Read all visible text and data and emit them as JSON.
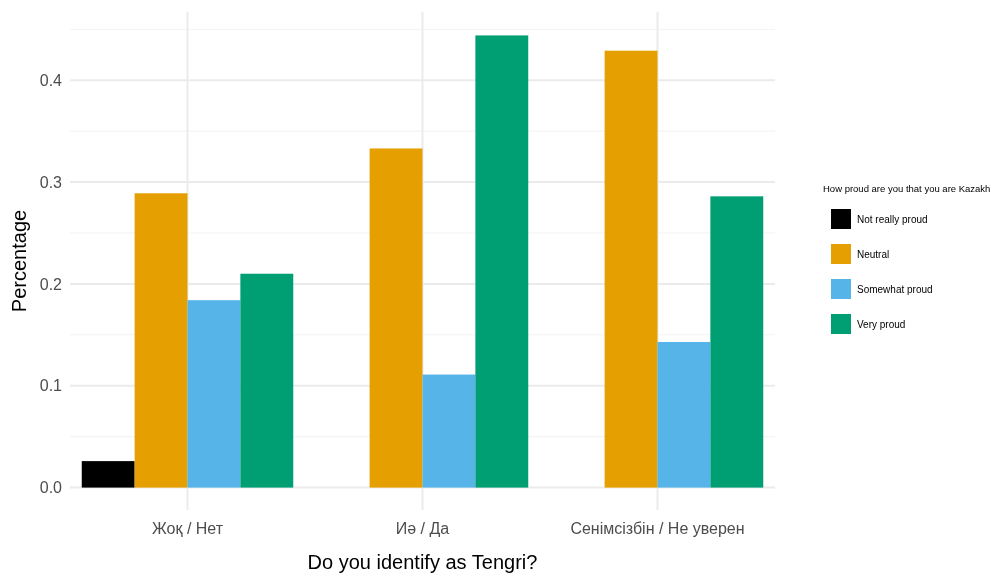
{
  "chart_data": {
    "type": "bar",
    "xlabel": "Do you identify as Tengri?",
    "ylabel": "Percentage",
    "legend_title": "How proud are you that you are Kazakh",
    "categories": [
      "Жоқ / Нет",
      "Иә / Да",
      "Сенімсізбін / Не уверен"
    ],
    "series": [
      {
        "name": "Not really proud",
        "color": "#000000",
        "values": [
          0.026,
          null,
          null
        ]
      },
      {
        "name": "Neutral",
        "color": "#e69f00",
        "values": [
          0.289,
          0.333,
          0.429
        ]
      },
      {
        "name": "Somewhat proud",
        "color": "#56b4e9",
        "values": [
          0.184,
          0.111,
          0.143
        ]
      },
      {
        "name": "Very proud",
        "color": "#009e73",
        "values": [
          0.21,
          0.444,
          0.286
        ]
      }
    ],
    "ylim": [
      -0.022,
      0.467
    ],
    "yticks": [
      {
        "value": 0,
        "label": "0.0"
      },
      {
        "value": 0.1,
        "label": "0.1"
      },
      {
        "value": 0.2,
        "label": "0.2"
      },
      {
        "value": 0.3,
        "label": "0.3"
      },
      {
        "value": 0.4,
        "label": "0.4"
      }
    ],
    "grid": true,
    "legend": "right"
  }
}
